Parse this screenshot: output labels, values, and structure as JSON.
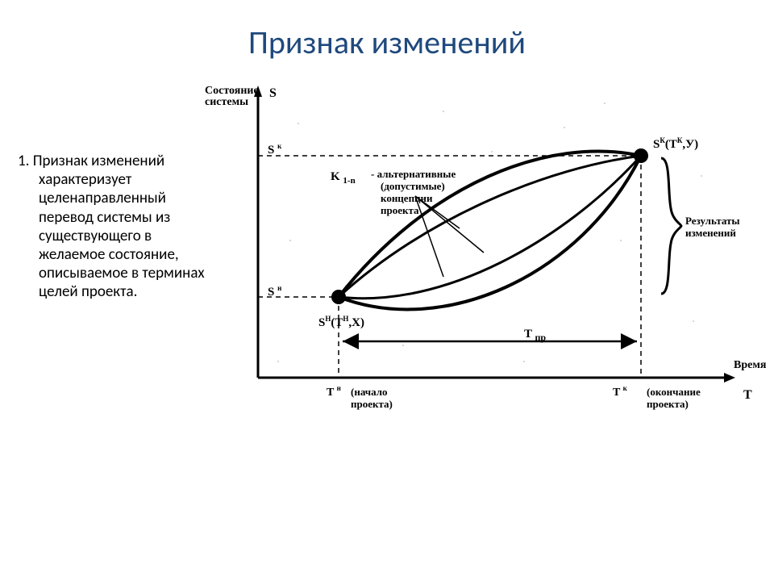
{
  "title": "Признак изменений",
  "paragraph": "1. Признак изменений характеризует целенаправленный перевод системы из существующего в желаемое состояние, описываемое в терминах целей проекта.",
  "diagram": {
    "type": "scientific-diagram",
    "background_color": "#ffffff",
    "stroke_color": "#000000",
    "title_color": "#1f497d",
    "body_font_size": 19,
    "label_font_family": "Times New Roman",
    "label_fontsize_main": 16,
    "label_fontsize_small": 13,
    "axis": {
      "x": {
        "label": "Время",
        "var": "T"
      },
      "y": {
        "label": "Состояние системы",
        "var": "S"
      }
    },
    "points": {
      "start": {
        "label_main": "Sᴴ(Tᴴ,X)",
        "tick_label": "S н",
        "x_tick": "T н",
        "x_desc": "(начало проекта)"
      },
      "end": {
        "label_main": "Sᴷ(Tᴷ,У)",
        "tick_label": "S к",
        "x_tick": "T к",
        "x_desc": "(окончание проекта)"
      }
    },
    "mid_label": {
      "prefix": "K 1-n",
      "line1": "- альтернативные",
      "line2": "(допустимые)",
      "line3": "концепции",
      "line4": "проекта"
    },
    "right_label": "Результаты изменений",
    "duration_label": "T пр",
    "node_radius": 8,
    "line_thick": 4,
    "line_thin": 2
  }
}
